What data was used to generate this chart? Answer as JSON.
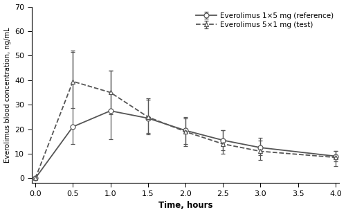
{
  "time": [
    0.0,
    0.5,
    1.0,
    1.5,
    2.0,
    2.5,
    3.0,
    4.0
  ],
  "ref_mean": [
    0.0,
    21.0,
    27.5,
    24.5,
    19.5,
    15.5,
    12.5,
    9.0
  ],
  "ref_err_upper": [
    0.0,
    31.0,
    16.5,
    8.0,
    5.5,
    4.0,
    4.0,
    2.0
  ],
  "ref_err_lower": [
    0.0,
    7.0,
    11.5,
    6.5,
    5.5,
    4.0,
    3.0,
    2.0
  ],
  "test_mean": [
    0.0,
    39.5,
    35.0,
    25.0,
    19.0,
    14.0,
    11.0,
    8.5
  ],
  "test_err_upper": [
    0.0,
    12.0,
    9.0,
    7.0,
    5.5,
    5.5,
    4.5,
    2.5
  ],
  "test_err_lower": [
    0.0,
    11.0,
    9.0,
    6.5,
    6.0,
    4.0,
    3.5,
    3.5
  ],
  "ref_label": "Everolimus 1×5 mg (reference)",
  "test_label": "Everolimus 5×1 mg (test)",
  "xlabel": "Time, hours",
  "ylabel": "Everolimus blood concentration, ng/mL",
  "ylim": [
    -2,
    70
  ],
  "xlim": [
    0.0,
    4.0
  ],
  "yticks": [
    0,
    10,
    20,
    30,
    40,
    50,
    60,
    70
  ],
  "xticks": [
    0.0,
    0.5,
    1.0,
    1.5,
    2.0,
    2.5,
    3.0,
    3.5,
    4.0
  ],
  "line_color": "#555555",
  "bg_color": "#ffffff",
  "ref_marker": "o",
  "test_marker": "^",
  "ref_linestyle": "-",
  "test_linestyle": "--",
  "markersize": 5,
  "linewidth": 1.3,
  "elinewidth": 0.9,
  "capsize": 2.5
}
